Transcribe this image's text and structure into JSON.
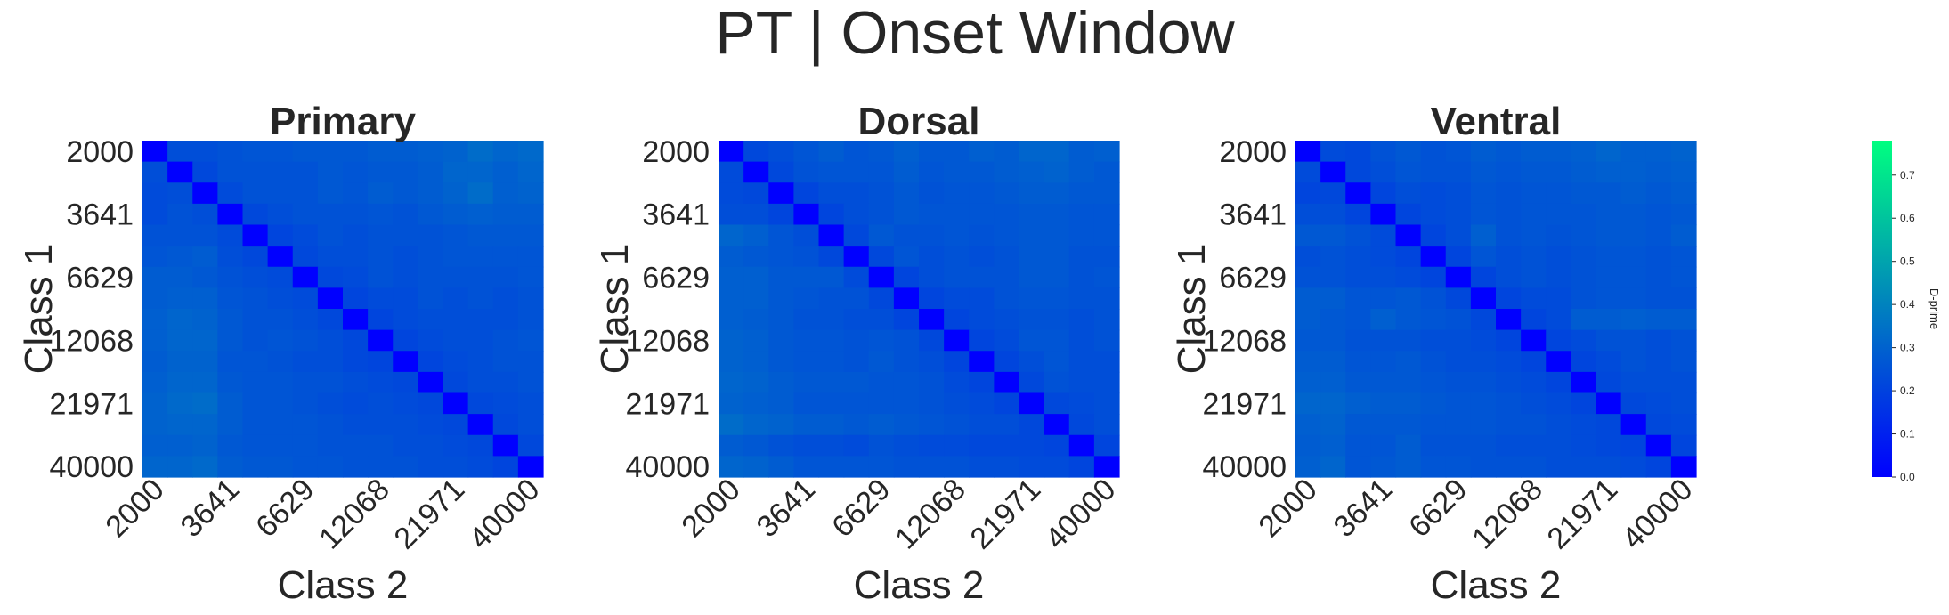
{
  "chart_data": {
    "type": "heatmap",
    "title": "PT | Onset Window",
    "tick_labels": [
      "2000",
      "3641",
      "6629",
      "12068",
      "21971",
      "40000"
    ],
    "n_cells": 16,
    "xlabel": "Class 2",
    "ylabel": "Class 1",
    "colorbar": {
      "label": "D-prime",
      "range": [
        0.0,
        0.78
      ],
      "ticks": [
        "0.0",
        "0.1",
        "0.2",
        "0.3",
        "0.4",
        "0.5",
        "0.6",
        "0.7"
      ],
      "colormap": "winter",
      "color_low": "#0000ff",
      "color_high": "#00ff80"
    },
    "panels": [
      {
        "name": "Primary",
        "values": [
          [
            0.0,
            0.24,
            0.24,
            0.25,
            0.26,
            0.26,
            0.27,
            0.27,
            0.27,
            0.28,
            0.28,
            0.29,
            0.3,
            0.33,
            0.31,
            0.32
          ],
          [
            0.24,
            0.0,
            0.22,
            0.25,
            0.25,
            0.25,
            0.25,
            0.27,
            0.26,
            0.27,
            0.27,
            0.28,
            0.31,
            0.31,
            0.29,
            0.31
          ],
          [
            0.23,
            0.24,
            0.0,
            0.23,
            0.25,
            0.25,
            0.25,
            0.27,
            0.26,
            0.28,
            0.27,
            0.28,
            0.3,
            0.33,
            0.29,
            0.3
          ],
          [
            0.23,
            0.25,
            0.24,
            0.0,
            0.22,
            0.24,
            0.25,
            0.25,
            0.25,
            0.26,
            0.25,
            0.27,
            0.28,
            0.29,
            0.28,
            0.28
          ],
          [
            0.25,
            0.25,
            0.25,
            0.23,
            0.0,
            0.21,
            0.23,
            0.25,
            0.24,
            0.25,
            0.25,
            0.25,
            0.26,
            0.27,
            0.27,
            0.27
          ],
          [
            0.26,
            0.27,
            0.28,
            0.24,
            0.22,
            0.0,
            0.22,
            0.24,
            0.24,
            0.25,
            0.24,
            0.25,
            0.26,
            0.26,
            0.26,
            0.26
          ],
          [
            0.28,
            0.28,
            0.27,
            0.25,
            0.24,
            0.23,
            0.0,
            0.22,
            0.23,
            0.25,
            0.24,
            0.25,
            0.25,
            0.25,
            0.25,
            0.26
          ],
          [
            0.28,
            0.29,
            0.29,
            0.26,
            0.25,
            0.24,
            0.23,
            0.0,
            0.21,
            0.23,
            0.23,
            0.25,
            0.24,
            0.25,
            0.24,
            0.25
          ],
          [
            0.29,
            0.31,
            0.3,
            0.27,
            0.25,
            0.25,
            0.24,
            0.22,
            0.0,
            0.21,
            0.23,
            0.24,
            0.24,
            0.24,
            0.24,
            0.25
          ],
          [
            0.29,
            0.31,
            0.31,
            0.27,
            0.25,
            0.26,
            0.25,
            0.24,
            0.22,
            0.0,
            0.21,
            0.23,
            0.24,
            0.24,
            0.25,
            0.26
          ],
          [
            0.28,
            0.3,
            0.3,
            0.26,
            0.26,
            0.25,
            0.24,
            0.24,
            0.22,
            0.21,
            0.0,
            0.21,
            0.23,
            0.24,
            0.25,
            0.25
          ],
          [
            0.29,
            0.31,
            0.31,
            0.27,
            0.26,
            0.26,
            0.25,
            0.25,
            0.24,
            0.23,
            0.22,
            0.0,
            0.22,
            0.24,
            0.24,
            0.25
          ],
          [
            0.3,
            0.32,
            0.33,
            0.28,
            0.26,
            0.26,
            0.25,
            0.24,
            0.23,
            0.24,
            0.23,
            0.22,
            0.0,
            0.22,
            0.23,
            0.24
          ],
          [
            0.3,
            0.31,
            0.31,
            0.28,
            0.26,
            0.26,
            0.26,
            0.25,
            0.24,
            0.24,
            0.24,
            0.23,
            0.22,
            0.0,
            0.22,
            0.24
          ],
          [
            0.29,
            0.29,
            0.3,
            0.27,
            0.26,
            0.26,
            0.26,
            0.25,
            0.25,
            0.25,
            0.24,
            0.24,
            0.23,
            0.22,
            0.0,
            0.22
          ],
          [
            0.31,
            0.31,
            0.32,
            0.28,
            0.27,
            0.27,
            0.26,
            0.26,
            0.25,
            0.25,
            0.25,
            0.24,
            0.24,
            0.23,
            0.21,
            0.0
          ]
        ]
      },
      {
        "name": "Dorsal",
        "values": [
          [
            0.0,
            0.22,
            0.24,
            0.26,
            0.28,
            0.26,
            0.27,
            0.29,
            0.27,
            0.27,
            0.29,
            0.28,
            0.31,
            0.31,
            0.28,
            0.29
          ],
          [
            0.23,
            0.0,
            0.22,
            0.25,
            0.26,
            0.26,
            0.26,
            0.28,
            0.26,
            0.27,
            0.27,
            0.28,
            0.29,
            0.3,
            0.28,
            0.27
          ],
          [
            0.23,
            0.22,
            0.0,
            0.21,
            0.24,
            0.24,
            0.25,
            0.27,
            0.25,
            0.26,
            0.26,
            0.27,
            0.28,
            0.28,
            0.27,
            0.27
          ],
          [
            0.24,
            0.24,
            0.21,
            0.0,
            0.21,
            0.24,
            0.25,
            0.27,
            0.26,
            0.26,
            0.26,
            0.26,
            0.27,
            0.27,
            0.26,
            0.26
          ],
          [
            0.31,
            0.29,
            0.26,
            0.24,
            0.0,
            0.22,
            0.27,
            0.25,
            0.25,
            0.26,
            0.25,
            0.26,
            0.27,
            0.27,
            0.26,
            0.26
          ],
          [
            0.28,
            0.27,
            0.26,
            0.25,
            0.22,
            0.0,
            0.22,
            0.26,
            0.24,
            0.25,
            0.24,
            0.25,
            0.27,
            0.27,
            0.25,
            0.25
          ],
          [
            0.29,
            0.29,
            0.27,
            0.27,
            0.27,
            0.23,
            0.0,
            0.21,
            0.24,
            0.25,
            0.25,
            0.25,
            0.27,
            0.27,
            0.25,
            0.26
          ],
          [
            0.29,
            0.29,
            0.27,
            0.26,
            0.25,
            0.25,
            0.22,
            0.0,
            0.21,
            0.23,
            0.23,
            0.25,
            0.26,
            0.26,
            0.25,
            0.25
          ],
          [
            0.29,
            0.28,
            0.27,
            0.25,
            0.25,
            0.24,
            0.24,
            0.21,
            0.0,
            0.21,
            0.23,
            0.24,
            0.25,
            0.25,
            0.24,
            0.25
          ],
          [
            0.3,
            0.29,
            0.27,
            0.26,
            0.26,
            0.25,
            0.26,
            0.25,
            0.22,
            0.0,
            0.21,
            0.23,
            0.26,
            0.26,
            0.24,
            0.25
          ],
          [
            0.3,
            0.29,
            0.27,
            0.26,
            0.26,
            0.25,
            0.27,
            0.25,
            0.24,
            0.21,
            0.0,
            0.21,
            0.24,
            0.26,
            0.24,
            0.24
          ],
          [
            0.31,
            0.3,
            0.28,
            0.27,
            0.27,
            0.27,
            0.26,
            0.26,
            0.25,
            0.23,
            0.21,
            0.0,
            0.22,
            0.25,
            0.24,
            0.24
          ],
          [
            0.3,
            0.29,
            0.28,
            0.26,
            0.26,
            0.26,
            0.26,
            0.26,
            0.25,
            0.24,
            0.23,
            0.21,
            0.0,
            0.22,
            0.23,
            0.24
          ],
          [
            0.33,
            0.31,
            0.3,
            0.28,
            0.28,
            0.27,
            0.28,
            0.27,
            0.26,
            0.25,
            0.24,
            0.24,
            0.22,
            0.0,
            0.22,
            0.24
          ],
          [
            0.28,
            0.27,
            0.25,
            0.24,
            0.24,
            0.23,
            0.25,
            0.24,
            0.23,
            0.23,
            0.22,
            0.22,
            0.22,
            0.21,
            0.0,
            0.21
          ],
          [
            0.31,
            0.3,
            0.28,
            0.26,
            0.26,
            0.26,
            0.26,
            0.25,
            0.25,
            0.25,
            0.24,
            0.24,
            0.23,
            0.23,
            0.21,
            0.0
          ]
        ]
      },
      {
        "name": "Ventral",
        "values": [
          [
            0.0,
            0.23,
            0.22,
            0.25,
            0.27,
            0.25,
            0.26,
            0.28,
            0.27,
            0.28,
            0.28,
            0.29,
            0.31,
            0.29,
            0.29,
            0.3
          ],
          [
            0.23,
            0.0,
            0.22,
            0.24,
            0.26,
            0.25,
            0.25,
            0.27,
            0.26,
            0.27,
            0.27,
            0.28,
            0.29,
            0.29,
            0.28,
            0.29
          ],
          [
            0.21,
            0.22,
            0.0,
            0.21,
            0.24,
            0.23,
            0.24,
            0.26,
            0.25,
            0.26,
            0.26,
            0.27,
            0.27,
            0.28,
            0.27,
            0.28
          ],
          [
            0.24,
            0.24,
            0.21,
            0.0,
            0.21,
            0.23,
            0.24,
            0.26,
            0.25,
            0.26,
            0.26,
            0.26,
            0.27,
            0.27,
            0.26,
            0.27
          ],
          [
            0.27,
            0.27,
            0.25,
            0.23,
            0.0,
            0.21,
            0.24,
            0.29,
            0.25,
            0.26,
            0.25,
            0.26,
            0.27,
            0.27,
            0.26,
            0.28
          ],
          [
            0.24,
            0.25,
            0.24,
            0.23,
            0.21,
            0.0,
            0.21,
            0.26,
            0.24,
            0.25,
            0.24,
            0.25,
            0.26,
            0.26,
            0.25,
            0.26
          ],
          [
            0.25,
            0.25,
            0.24,
            0.24,
            0.23,
            0.21,
            0.0,
            0.21,
            0.24,
            0.25,
            0.24,
            0.25,
            0.26,
            0.26,
            0.25,
            0.26
          ],
          [
            0.28,
            0.28,
            0.26,
            0.26,
            0.27,
            0.25,
            0.22,
            0.0,
            0.21,
            0.23,
            0.23,
            0.25,
            0.26,
            0.26,
            0.25,
            0.25
          ],
          [
            0.28,
            0.27,
            0.26,
            0.29,
            0.27,
            0.26,
            0.25,
            0.22,
            0.0,
            0.21,
            0.23,
            0.28,
            0.28,
            0.29,
            0.28,
            0.28
          ],
          [
            0.27,
            0.27,
            0.25,
            0.25,
            0.25,
            0.24,
            0.24,
            0.23,
            0.21,
            0.0,
            0.21,
            0.23,
            0.25,
            0.25,
            0.24,
            0.25
          ],
          [
            0.28,
            0.28,
            0.26,
            0.26,
            0.27,
            0.25,
            0.24,
            0.24,
            0.23,
            0.21,
            0.0,
            0.21,
            0.23,
            0.25,
            0.24,
            0.25
          ],
          [
            0.29,
            0.29,
            0.27,
            0.27,
            0.27,
            0.26,
            0.25,
            0.25,
            0.24,
            0.23,
            0.21,
            0.0,
            0.22,
            0.24,
            0.24,
            0.24
          ],
          [
            0.31,
            0.31,
            0.29,
            0.28,
            0.28,
            0.27,
            0.26,
            0.26,
            0.25,
            0.24,
            0.23,
            0.21,
            0.0,
            0.22,
            0.23,
            0.24
          ],
          [
            0.29,
            0.3,
            0.27,
            0.27,
            0.27,
            0.26,
            0.26,
            0.26,
            0.25,
            0.25,
            0.24,
            0.23,
            0.22,
            0.0,
            0.22,
            0.23
          ],
          [
            0.28,
            0.29,
            0.26,
            0.26,
            0.28,
            0.25,
            0.25,
            0.25,
            0.24,
            0.24,
            0.24,
            0.23,
            0.22,
            0.21,
            0.0,
            0.21
          ],
          [
            0.29,
            0.31,
            0.26,
            0.27,
            0.28,
            0.26,
            0.26,
            0.25,
            0.25,
            0.25,
            0.24,
            0.24,
            0.24,
            0.23,
            0.21,
            0.0
          ]
        ]
      }
    ]
  }
}
